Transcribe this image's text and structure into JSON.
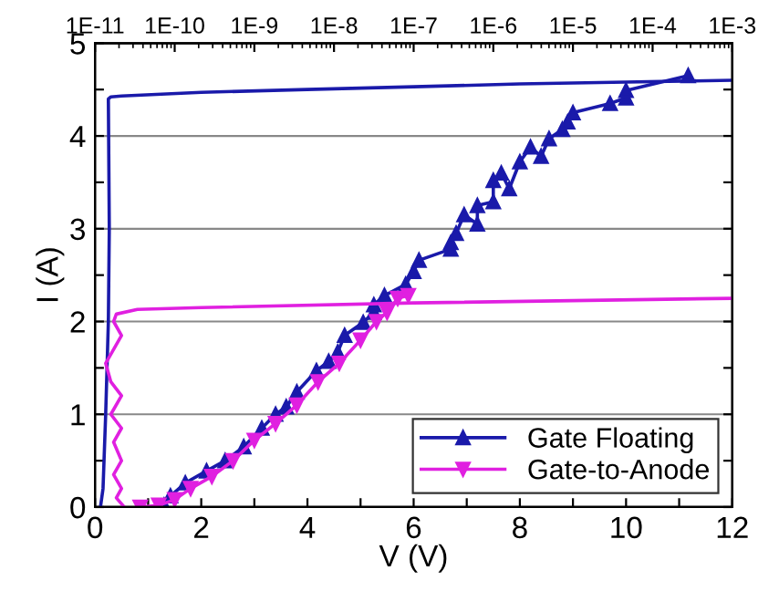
{
  "chart_data": {
    "type": "line",
    "xlabel": "V (V)",
    "ylabel": "I (A)",
    "xlim": [
      0,
      12
    ],
    "xticks": [
      0,
      {
        "value": 1,
        "label": null
      },
      2,
      {
        "value": 3,
        "label": null
      },
      4,
      {
        "value": 5,
        "label": null
      },
      6,
      {
        "value": 7,
        "label": null
      },
      8,
      {
        "value": 9,
        "label": null
      },
      10,
      {
        "value": 11,
        "label": null
      },
      12
    ],
    "ylim": [
      0,
      5
    ],
    "yticks": [
      0,
      {
        "value": 0.5,
        "label": null
      },
      1,
      {
        "value": 1.5,
        "label": null
      },
      2,
      {
        "value": 2.5,
        "label": null
      },
      3,
      {
        "value": 3.5,
        "label": null
      },
      4,
      {
        "value": 4.5,
        "label": null
      },
      5
    ],
    "x2lim": [
      1e-11,
      0.001
    ],
    "x2ticks": [
      {
        "value": 1e-11,
        "label": "1E-11"
      },
      {
        "value": 1e-10,
        "label": "1E-10"
      },
      {
        "value": 1e-09,
        "label": "1E-9"
      },
      {
        "value": 1e-08,
        "label": "1E-8"
      },
      {
        "value": 1e-07,
        "label": "1E-7"
      },
      {
        "value": 1e-06,
        "label": "1E-6"
      },
      {
        "value": 1e-05,
        "label": "1E-5"
      },
      {
        "value": 0.0001,
        "label": "1E-4"
      },
      {
        "value": 0.001,
        "label": "1E-3"
      }
    ],
    "log": "x2",
    "grid": "y",
    "legend": "bottom right",
    "line_style": "solid",
    "series": [
      {
        "name": "Gate Floating",
        "color": "#1a1aaa",
        "marker": "triangle",
        "x": [
          1.3,
          1.42,
          1.7,
          2.1,
          2.45,
          2.8,
          3.14,
          3.4,
          3.6,
          3.8,
          4.17,
          4.4,
          4.57,
          4.7,
          5.05,
          5.25,
          5.25,
          5.45,
          5.85,
          6.0,
          6.1,
          6.7,
          6.7,
          6.8,
          6.95,
          7.2,
          7.2,
          7.5,
          7.5,
          7.65,
          7.8,
          8.0,
          8.2,
          8.4,
          8.55,
          8.8,
          8.9,
          9.0,
          9.7,
          10.0,
          10.0,
          11.17
        ],
        "values": [
          0.02,
          0.12,
          0.26,
          0.39,
          0.5,
          0.65,
          0.85,
          1.0,
          1.08,
          1.24,
          1.47,
          1.57,
          1.67,
          1.85,
          1.99,
          2.1,
          2.18,
          2.28,
          2.4,
          2.54,
          2.66,
          2.78,
          2.85,
          2.95,
          3.15,
          3.05,
          3.25,
          3.29,
          3.52,
          3.6,
          3.43,
          3.72,
          3.88,
          3.78,
          3.97,
          4.07,
          4.15,
          4.25,
          4.35,
          4.41,
          4.49,
          4.65
        ]
      },
      {
        "name": "Gate-to-Anode",
        "color": "#e020e0",
        "marker": "triangle_down",
        "x": [
          0.85,
          1.2,
          1.5,
          1.8,
          2.2,
          2.6,
          3.0,
          3.4,
          3.8,
          4.2,
          4.6,
          5.0,
          5.3,
          5.5,
          5.7,
          5.9
        ],
        "values": [
          0.0,
          0.02,
          0.08,
          0.2,
          0.33,
          0.5,
          0.72,
          0.9,
          1.1,
          1.35,
          1.55,
          1.8,
          2.0,
          2.1,
          2.25,
          2.28
        ]
      },
      {
        "color": "#1a1aaa",
        "marker": "none",
        "axis": "x2",
        "x": [
          1.17e-11,
          1.26e-11,
          1.36e-11,
          1.47e-11,
          1.51e-11,
          1.47e-11,
          1.58e-11,
          2.15e-11,
          2.15e-10,
          4.6e-09,
          1e-07,
          2.15e-06,
          4.6e-05,
          0.001
        ],
        "values": [
          0.0,
          0.2,
          1.0,
          2.0,
          3.0,
          4.4,
          4.42,
          4.43,
          4.47,
          4.5,
          4.53,
          4.56,
          4.58,
          4.6
        ]
      },
      {
        "color": "#e020e0",
        "marker": "none",
        "axis": "x2",
        "x": [
          2.33e-11,
          1.85e-11,
          2.15e-11,
          1.71e-11,
          2.15e-11,
          1.71e-11,
          2.15e-11,
          1.58e-11,
          2.15e-11,
          1.58e-11,
          1.36e-11,
          1.85e-11,
          2.15e-11,
          1.71e-11,
          1.85e-11,
          3.4e-11,
          2.15e-10,
          1e-07,
          0.001
        ],
        "values": [
          0.0,
          0.1,
          0.2,
          0.35,
          0.5,
          0.7,
          0.85,
          1.0,
          1.2,
          1.35,
          1.55,
          1.75,
          1.85,
          2.0,
          2.08,
          2.13,
          2.15,
          2.2,
          2.25
        ]
      }
    ]
  }
}
